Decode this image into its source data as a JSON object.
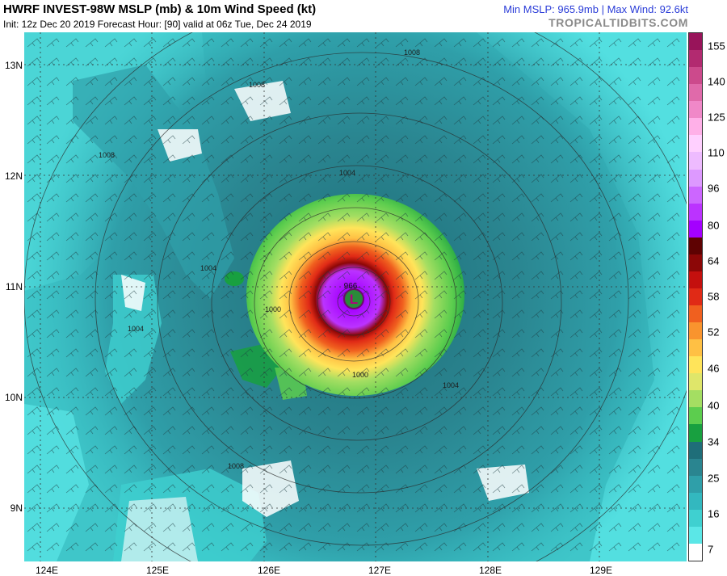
{
  "header": {
    "title": "HWRF INVEST-98W MSLP (mb) & 10m Wind Speed (kt)",
    "subtitle": "Init: 12z Dec 20 2019   Forecast Hour: [90]   valid at 06z Tue, Dec 24 2019",
    "stats": "Min MSLP: 965.9mb | Max Wind: 92.6kt",
    "brand": "TROPICALTIDBITS.COM"
  },
  "map": {
    "lat_labels": [
      "13N",
      "12N",
      "11N",
      "10N",
      "9N"
    ],
    "lon_labels": [
      "124E",
      "125E",
      "126E",
      "127E",
      "128E",
      "129E"
    ],
    "isobar_labels": [
      "1008",
      "1008",
      "1008",
      "1004",
      "1004",
      "1004",
      "1000",
      "1000",
      "1004",
      "1008"
    ],
    "center_label": "L",
    "center_pressure": "966",
    "center_color": "#2a8a3a"
  },
  "colorbar": {
    "labels": [
      "155",
      "140",
      "125",
      "110",
      "96",
      "80",
      "64",
      "58",
      "52",
      "46",
      "40",
      "34",
      "25",
      "16",
      "7"
    ],
    "colors": [
      "#ffffff",
      "#5be7e7",
      "#3fd0d0",
      "#33b8bf",
      "#2f9fa9",
      "#2a8590",
      "#1f6e79",
      "#18a040",
      "#5ccd4e",
      "#a4de62",
      "#dfe66a",
      "#ffe45a",
      "#ffc044",
      "#f9942e",
      "#f0601f",
      "#e02a16",
      "#c4100e",
      "#8c0707",
      "#5e0202",
      "#a400ff",
      "#bb33ff",
      "#cc66ff",
      "#dd99ff",
      "#eebbff",
      "#ffd0ff",
      "#ffb0e8",
      "#f088c8",
      "#e06aaa",
      "#cc4a8c",
      "#b22a70",
      "#98145a"
    ]
  }
}
